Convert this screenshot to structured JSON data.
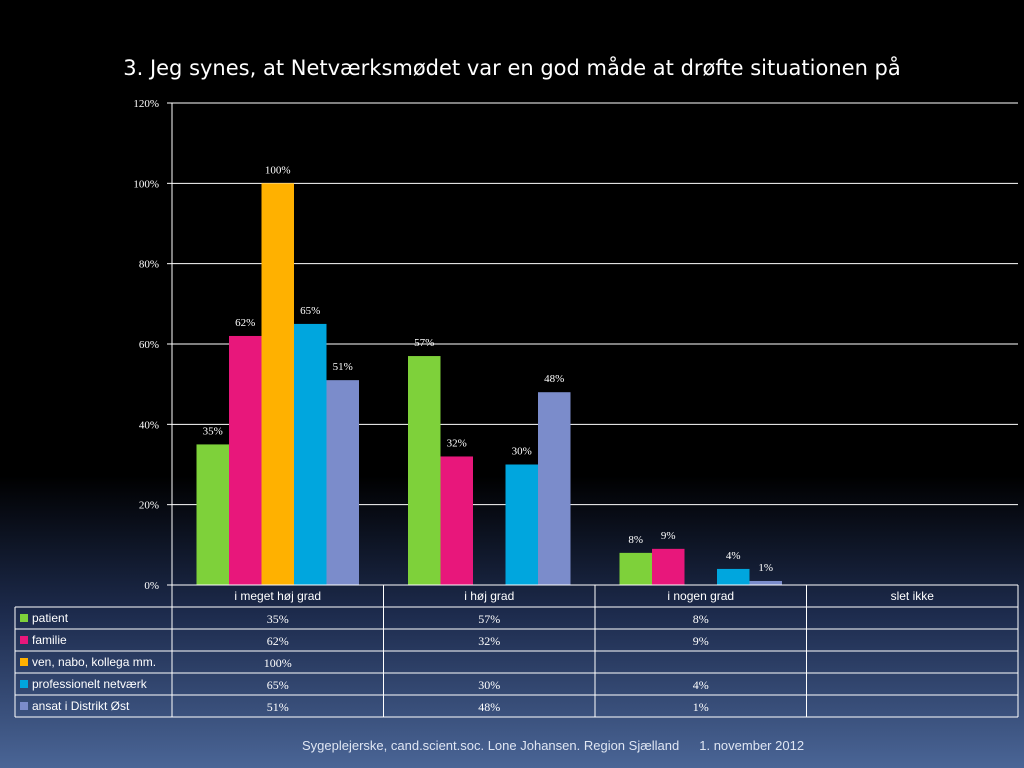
{
  "slide": {
    "title": "3. Jeg synes, at Netværksmødet var en god måde at drøfte situationen på",
    "footer_author": "Sygeplejerske, cand.scient.soc. Lone Johansen. Region Sjælland",
    "footer_date": "1. november 2012"
  },
  "chart_data": {
    "type": "bar",
    "title": "3. Jeg synes, at Netværksmødet var en god måde at drøfte situationen på",
    "categories": [
      "i meget høj grad",
      "i høj grad",
      "i nogen grad",
      "slet ikke"
    ],
    "ylim": [
      0,
      120
    ],
    "yticks": [
      0,
      20,
      40,
      60,
      80,
      100,
      120
    ],
    "ytick_labels": [
      "0%",
      "20%",
      "40%",
      "60%",
      "80%",
      "100%",
      "120%"
    ],
    "grid": true,
    "legend": "data-table",
    "series": [
      {
        "name": "patient",
        "color": "#7ed13a",
        "values": [
          35,
          57,
          8,
          null
        ],
        "labels": [
          "35%",
          "57%",
          "8%",
          ""
        ]
      },
      {
        "name": "familie",
        "color": "#e8177b",
        "values": [
          62,
          32,
          9,
          null
        ],
        "labels": [
          "62%",
          "32%",
          "9%",
          ""
        ]
      },
      {
        "name": "ven, nabo, kollega mm.",
        "color": "#ffb100",
        "values": [
          100,
          null,
          null,
          null
        ],
        "labels": [
          "100%",
          "",
          "",
          ""
        ]
      },
      {
        "name": "professionelt netværk",
        "color": "#00a6de",
        "values": [
          65,
          30,
          4,
          null
        ],
        "labels": [
          "65%",
          "30%",
          "4%",
          ""
        ]
      },
      {
        "name": "ansat i Distrikt Øst",
        "color": "#7b8ccb",
        "values": [
          51,
          48,
          1,
          null
        ],
        "labels": [
          "51%",
          "48%",
          "1%",
          ""
        ]
      }
    ]
  }
}
